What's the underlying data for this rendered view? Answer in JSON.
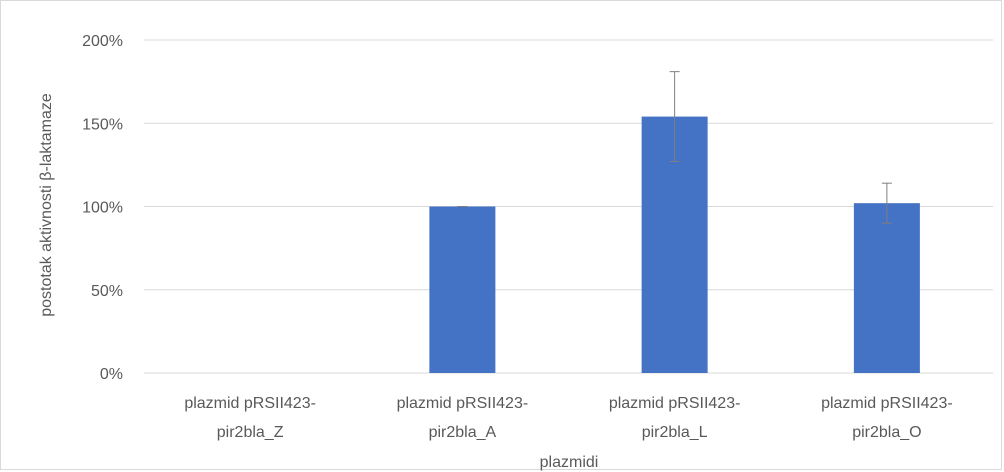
{
  "chart_data": {
    "type": "bar",
    "title": "",
    "xlabel": "plazmidi",
    "ylabel": "postotak aktivnosti β-laktamaze",
    "categories": [
      [
        "plazmid pRSII423-",
        "pir2bla_Z"
      ],
      [
        "plazmid pRSII423-",
        "pir2bla_A"
      ],
      [
        "plazmid pRSII423-",
        "pir2bla_L"
      ],
      [
        "plazmid pRSII423-",
        "pir2bla_O"
      ]
    ],
    "values": [
      0,
      100,
      154,
      102
    ],
    "error": [
      0,
      0,
      27,
      12
    ],
    "ylim": [
      0,
      200
    ],
    "yticks": [
      0,
      50,
      100,
      150,
      200
    ],
    "ytick_labels": [
      "0%",
      "50%",
      "100%",
      "150%",
      "200%"
    ],
    "grid": true,
    "legend": "none",
    "bar_color": "#4472c4",
    "grid_color": "#d9d9d9",
    "axis_color": "#d9d9d9",
    "error_color": "#7f7f7f"
  }
}
